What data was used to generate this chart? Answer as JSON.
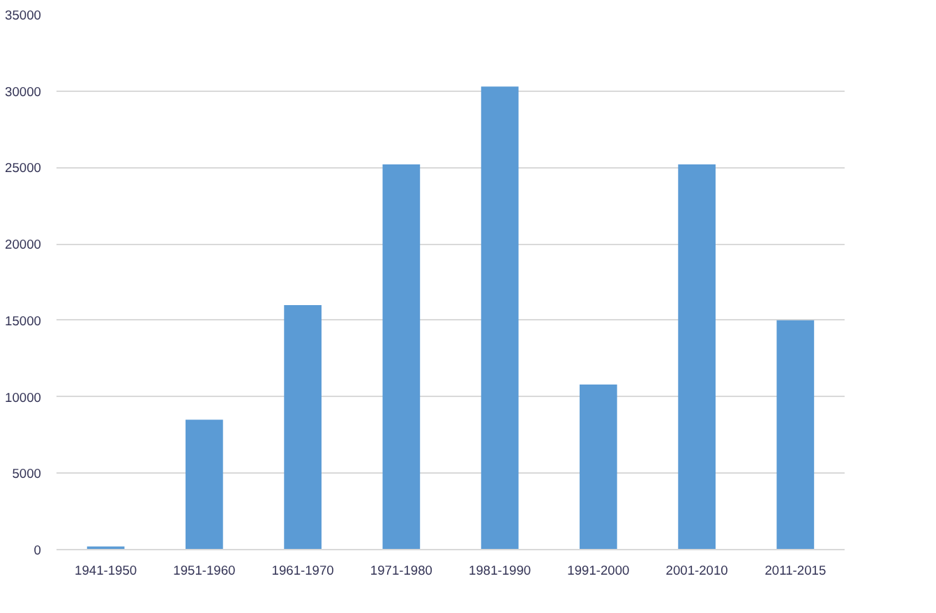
{
  "chart_data": {
    "type": "bar",
    "categories": [
      "1941-1950",
      "1951-1960",
      "1961-1970",
      "1971-1980",
      "1981-1990",
      "1991-2000",
      "2001-2010",
      "2011-2015"
    ],
    "values": [
      200,
      8500,
      16000,
      25200,
      30300,
      10800,
      25200,
      15000
    ],
    "color": "#5b9bd5",
    "ylim": [
      0,
      35000
    ],
    "yticks": [
      0,
      5000,
      10000,
      15000,
      20000,
      25000,
      30000,
      35000
    ],
    "grid": "y"
  }
}
